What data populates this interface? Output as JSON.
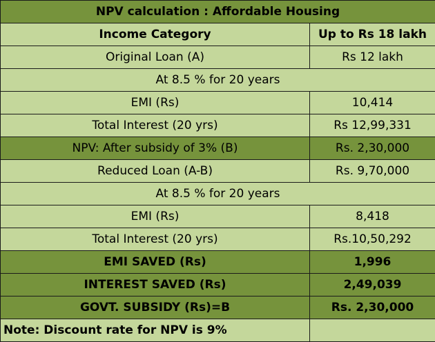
{
  "title": "NPV calculation : Affordable Housing",
  "header": {
    "category": "Income Category",
    "value": "Up to Rs 18 lakh"
  },
  "rows": [
    {
      "label": "Original Loan (A)",
      "value": "Rs 12 lakh"
    },
    {
      "label": "At 8.5 % for 20 years"
    },
    {
      "label": "EMI (Rs)",
      "value": "10,414"
    },
    {
      "label": "Total Interest (20 yrs)",
      "value": "Rs 12,99,331"
    },
    {
      "label": "NPV: After subsidy of 3% (B)",
      "value": "Rs. 2,30,000"
    },
    {
      "label": "Reduced Loan (A-B)",
      "value": "Rs. 9,70,000"
    },
    {
      "label": "At 8.5 % for 20 years"
    },
    {
      "label": "EMI (Rs)",
      "value": "8,418"
    },
    {
      "label": "Total Interest (20 yrs)",
      "value": "Rs.10,50,292"
    },
    {
      "label": "EMI SAVED (Rs)",
      "value": "1,996"
    },
    {
      "label": "INTEREST SAVED (Rs)",
      "value": "2,49,039"
    },
    {
      "label": "GOVT. SUBSIDY (Rs)=B",
      "value": "Rs. 2,30,000"
    }
  ],
  "note": "Note: Discount rate for NPV is 9%",
  "colors": {
    "light_green": "#c4d79b",
    "dark_green": "#76933c",
    "border": "#1a1a1a"
  }
}
